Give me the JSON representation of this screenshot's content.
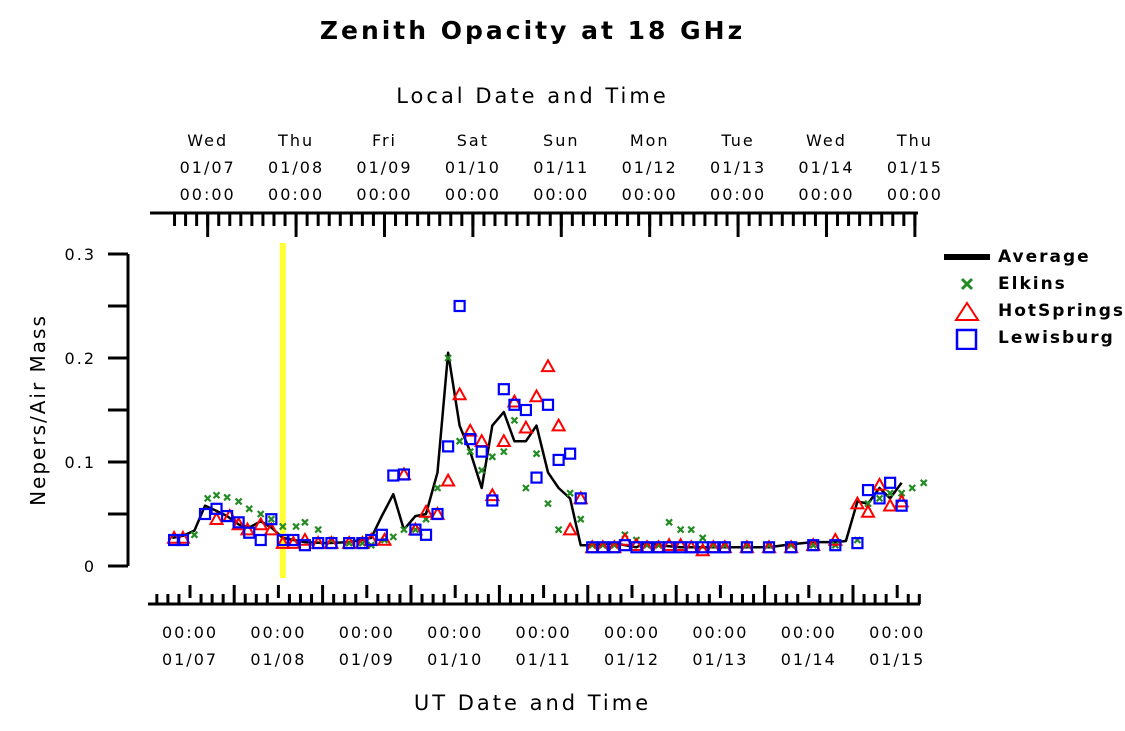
{
  "chart_data": {
    "type": "scatter",
    "title": "Zenith Opacity at 18 GHz",
    "ylabel": "Nepers/Air Mass",
    "xlabel_bottom": "UT Date and Time",
    "xlabel_top": "Local Date and Time",
    "ylim": [
      0,
      0.3
    ],
    "y_ticks": [
      "0",
      "0.1",
      "0.2",
      "0.3"
    ],
    "xlim_days": [
      6.8,
      15.0
    ],
    "legend_position": "right",
    "marker_line": {
      "day": 8.05,
      "color": "#ffff33"
    },
    "bottom_ticks": [
      {
        "day": 7,
        "line1": "00:00",
        "line2": "01/07"
      },
      {
        "day": 8,
        "line1": "00:00",
        "line2": "01/08"
      },
      {
        "day": 9,
        "line1": "00:00",
        "line2": "01/09"
      },
      {
        "day": 10,
        "line1": "00:00",
        "line2": "01/10"
      },
      {
        "day": 11,
        "line1": "00:00",
        "line2": "01/11"
      },
      {
        "day": 12,
        "line1": "00:00",
        "line2": "01/12"
      },
      {
        "day": 13,
        "line1": "00:00",
        "line2": "01/13"
      },
      {
        "day": 14,
        "line1": "00:00",
        "line2": "01/14"
      },
      {
        "day": 15,
        "line1": "00:00",
        "line2": "01/15"
      }
    ],
    "top_ticks": [
      {
        "day": 7.2,
        "line1": "Wed",
        "line2": "01/07",
        "line3": "00:00"
      },
      {
        "day": 8.2,
        "line1": "Thu",
        "line2": "01/08",
        "line3": "00:00"
      },
      {
        "day": 9.2,
        "line1": "Fri",
        "line2": "01/09",
        "line3": "00:00"
      },
      {
        "day": 10.2,
        "line1": "Sat",
        "line2": "01/10",
        "line3": "00:00"
      },
      {
        "day": 11.2,
        "line1": "Sun",
        "line2": "01/11",
        "line3": "00:00"
      },
      {
        "day": 12.2,
        "line1": "Mon",
        "line2": "01/12",
        "line3": "00:00"
      },
      {
        "day": 13.2,
        "line1": "Tue",
        "line2": "01/13",
        "line3": "00:00"
      },
      {
        "day": 14.2,
        "line1": "Wed",
        "line2": "01/14",
        "line3": "00:00"
      },
      {
        "day": 15.2,
        "line1": "Thu",
        "line2": "01/15",
        "line3": "00:00"
      }
    ],
    "series": [
      {
        "name": "Average",
        "kind": "line",
        "color": "#000000",
        "x": [
          6.8,
          6.92,
          7.05,
          7.17,
          7.3,
          7.42,
          7.55,
          7.67,
          7.8,
          7.92,
          8.05,
          8.17,
          8.3,
          8.55,
          8.8,
          9.05,
          9.17,
          9.3,
          9.42,
          9.55,
          9.67,
          9.8,
          9.92,
          10.05,
          10.17,
          10.3,
          10.42,
          10.55,
          10.67,
          10.8,
          10.92,
          11.05,
          11.17,
          11.3,
          11.42,
          11.55,
          11.8,
          11.92,
          12.05,
          12.17,
          12.3,
          12.42,
          12.55,
          12.8,
          13.05,
          13.3,
          13.55,
          13.8,
          14.05,
          14.3,
          14.42,
          14.55,
          14.67,
          14.8,
          14.92,
          15.05
        ],
        "y": [
          0.027,
          0.029,
          0.034,
          0.058,
          0.053,
          0.048,
          0.04,
          0.037,
          0.043,
          0.037,
          0.027,
          0.025,
          0.023,
          0.022,
          0.023,
          0.027,
          0.048,
          0.069,
          0.035,
          0.048,
          0.05,
          0.09,
          0.205,
          0.135,
          0.11,
          0.075,
          0.135,
          0.148,
          0.12,
          0.12,
          0.135,
          0.09,
          0.075,
          0.065,
          0.02,
          0.02,
          0.022,
          0.02,
          0.018,
          0.023,
          0.02,
          0.019,
          0.018,
          0.018,
          0.018,
          0.018,
          0.018,
          0.021,
          0.023,
          0.023,
          0.024,
          0.062,
          0.06,
          0.075,
          0.065,
          0.08
        ]
      },
      {
        "name": "Elkins",
        "kind": "marker",
        "marker": "x",
        "color": "#228b22",
        "x": [
          7.05,
          7.2,
          7.3,
          7.42,
          7.55,
          7.67,
          7.8,
          7.92,
          8.05,
          8.2,
          8.3,
          8.45,
          8.6,
          8.8,
          8.95,
          9.05,
          9.2,
          9.3,
          9.42,
          9.55,
          9.67,
          9.8,
          9.92,
          10.05,
          10.17,
          10.3,
          10.42,
          10.55,
          10.67,
          10.8,
          10.92,
          11.05,
          11.17,
          11.3,
          11.42,
          11.55,
          11.67,
          11.8,
          11.92,
          12.05,
          12.17,
          12.3,
          12.42,
          12.55,
          12.67,
          12.8,
          12.92,
          13.05,
          13.3,
          13.55,
          13.8,
          14.05,
          14.3,
          14.55,
          14.67,
          14.8,
          14.92,
          15.05,
          15.17,
          15.3
        ],
        "y": [
          0.03,
          0.065,
          0.068,
          0.066,
          0.062,
          0.055,
          0.05,
          0.045,
          0.038,
          0.038,
          0.042,
          0.035,
          0.025,
          0.022,
          0.022,
          0.02,
          0.025,
          0.028,
          0.035,
          0.035,
          0.045,
          0.075,
          0.2,
          0.12,
          0.11,
          0.092,
          0.105,
          0.11,
          0.14,
          0.075,
          0.108,
          0.06,
          0.035,
          0.07,
          0.045,
          0.02,
          0.02,
          0.02,
          0.03,
          0.025,
          0.02,
          0.02,
          0.042,
          0.035,
          0.035,
          0.027,
          0.02,
          0.02,
          0.02,
          0.02,
          0.02,
          0.02,
          0.02,
          0.025,
          0.06,
          0.065,
          0.07,
          0.07,
          0.075,
          0.08
        ]
      },
      {
        "name": "HotSprings",
        "kind": "marker",
        "marker": "triangle",
        "color": "#ff0000",
        "x": [
          6.82,
          6.92,
          7.3,
          7.45,
          7.55,
          7.65,
          7.8,
          7.92,
          8.05,
          8.17,
          8.3,
          8.45,
          8.6,
          8.8,
          8.95,
          9.05,
          9.2,
          9.42,
          9.55,
          9.67,
          9.8,
          9.92,
          10.05,
          10.17,
          10.3,
          10.42,
          10.55,
          10.67,
          10.8,
          10.92,
          11.05,
          11.17,
          11.3,
          11.42,
          11.55,
          11.67,
          11.8,
          11.92,
          12.05,
          12.17,
          12.3,
          12.42,
          12.55,
          12.67,
          12.8,
          12.92,
          13.05,
          13.3,
          13.55,
          13.8,
          14.05,
          14.3,
          14.55,
          14.67,
          14.8,
          14.92,
          15.05
        ],
        "y": [
          0.027,
          0.027,
          0.045,
          0.048,
          0.04,
          0.035,
          0.04,
          0.035,
          0.022,
          0.022,
          0.025,
          0.022,
          0.022,
          0.022,
          0.022,
          0.025,
          0.025,
          0.088,
          0.035,
          0.052,
          0.05,
          0.082,
          0.165,
          0.13,
          0.12,
          0.068,
          0.12,
          0.158,
          0.133,
          0.163,
          0.192,
          0.135,
          0.035,
          0.065,
          0.018,
          0.018,
          0.018,
          0.025,
          0.02,
          0.018,
          0.018,
          0.02,
          0.02,
          0.018,
          0.015,
          0.018,
          0.018,
          0.018,
          0.018,
          0.018,
          0.02,
          0.025,
          0.06,
          0.052,
          0.078,
          0.058,
          0.062
        ]
      },
      {
        "name": "Lewisburg",
        "kind": "marker",
        "marker": "square",
        "color": "#0000ff",
        "x": [
          6.82,
          6.92,
          7.17,
          7.3,
          7.42,
          7.55,
          7.67,
          7.8,
          7.92,
          8.05,
          8.17,
          8.3,
          8.45,
          8.6,
          8.8,
          8.95,
          9.05,
          9.17,
          9.3,
          9.42,
          9.55,
          9.67,
          9.8,
          9.92,
          10.05,
          10.17,
          10.3,
          10.42,
          10.55,
          10.67,
          10.8,
          10.92,
          11.05,
          11.17,
          11.3,
          11.42,
          11.55,
          11.67,
          11.8,
          11.92,
          12.05,
          12.17,
          12.3,
          12.42,
          12.55,
          12.67,
          12.8,
          12.92,
          13.05,
          13.3,
          13.55,
          13.8,
          14.05,
          14.3,
          14.55,
          14.67,
          14.8,
          14.92,
          15.05
        ],
        "y": [
          0.025,
          0.025,
          0.05,
          0.055,
          0.048,
          0.042,
          0.032,
          0.025,
          0.045,
          0.025,
          0.025,
          0.02,
          0.022,
          0.022,
          0.022,
          0.022,
          0.025,
          0.03,
          0.087,
          0.088,
          0.035,
          0.03,
          0.05,
          0.115,
          0.25,
          0.122,
          0.11,
          0.063,
          0.17,
          0.155,
          0.15,
          0.085,
          0.155,
          0.102,
          0.108,
          0.065,
          0.018,
          0.018,
          0.018,
          0.02,
          0.018,
          0.018,
          0.018,
          0.018,
          0.018,
          0.018,
          0.018,
          0.018,
          0.018,
          0.018,
          0.018,
          0.018,
          0.02,
          0.02,
          0.022,
          0.073,
          0.065,
          0.08,
          0.058
        ]
      }
    ]
  }
}
